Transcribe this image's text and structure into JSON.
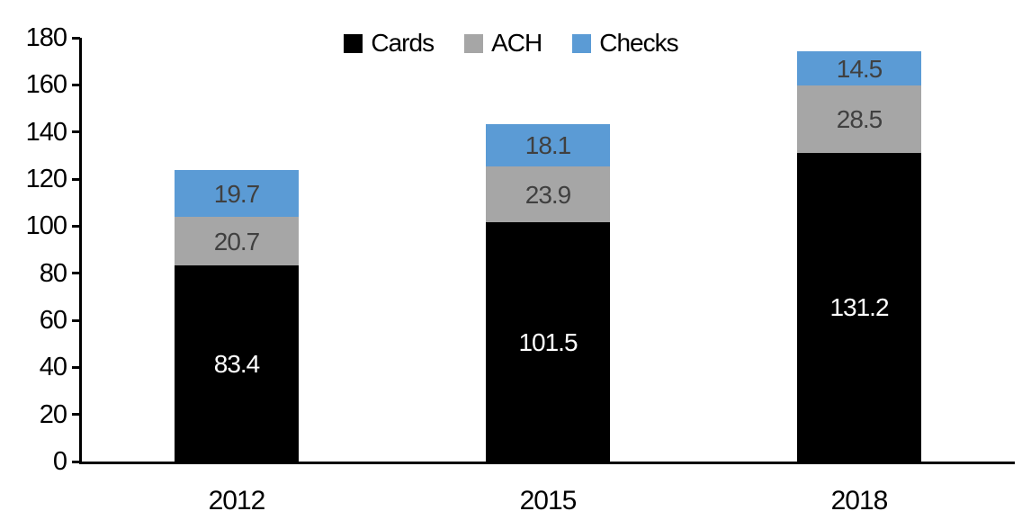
{
  "chart_data": {
    "type": "bar",
    "stacked": true,
    "title": "",
    "xlabel": "",
    "ylabel": "",
    "categories": [
      "2012",
      "2015",
      "2018"
    ],
    "series": [
      {
        "name": "Cards",
        "color": "#000000",
        "label_color": "#ffffff",
        "values": [
          83.4,
          101.5,
          131.2
        ]
      },
      {
        "name": "ACH",
        "color": "#a6a6a6",
        "label_color": "#404040",
        "values": [
          20.7,
          23.9,
          28.5
        ]
      },
      {
        "name": "Checks",
        "color": "#5b9bd5",
        "label_color": "#404040",
        "values": [
          19.7,
          18.1,
          14.5
        ]
      }
    ],
    "totals": [
      123.8,
      143.5,
      174.2
    ],
    "ylim": [
      0,
      180
    ],
    "yticks": [
      0,
      20,
      40,
      60,
      80,
      100,
      120,
      140,
      160,
      180
    ],
    "grid": false,
    "legend_position": "top",
    "legend_labels": [
      "Cards",
      "ACH",
      "Checks"
    ],
    "value_labels_shown": true,
    "axis_color": "#000000"
  }
}
